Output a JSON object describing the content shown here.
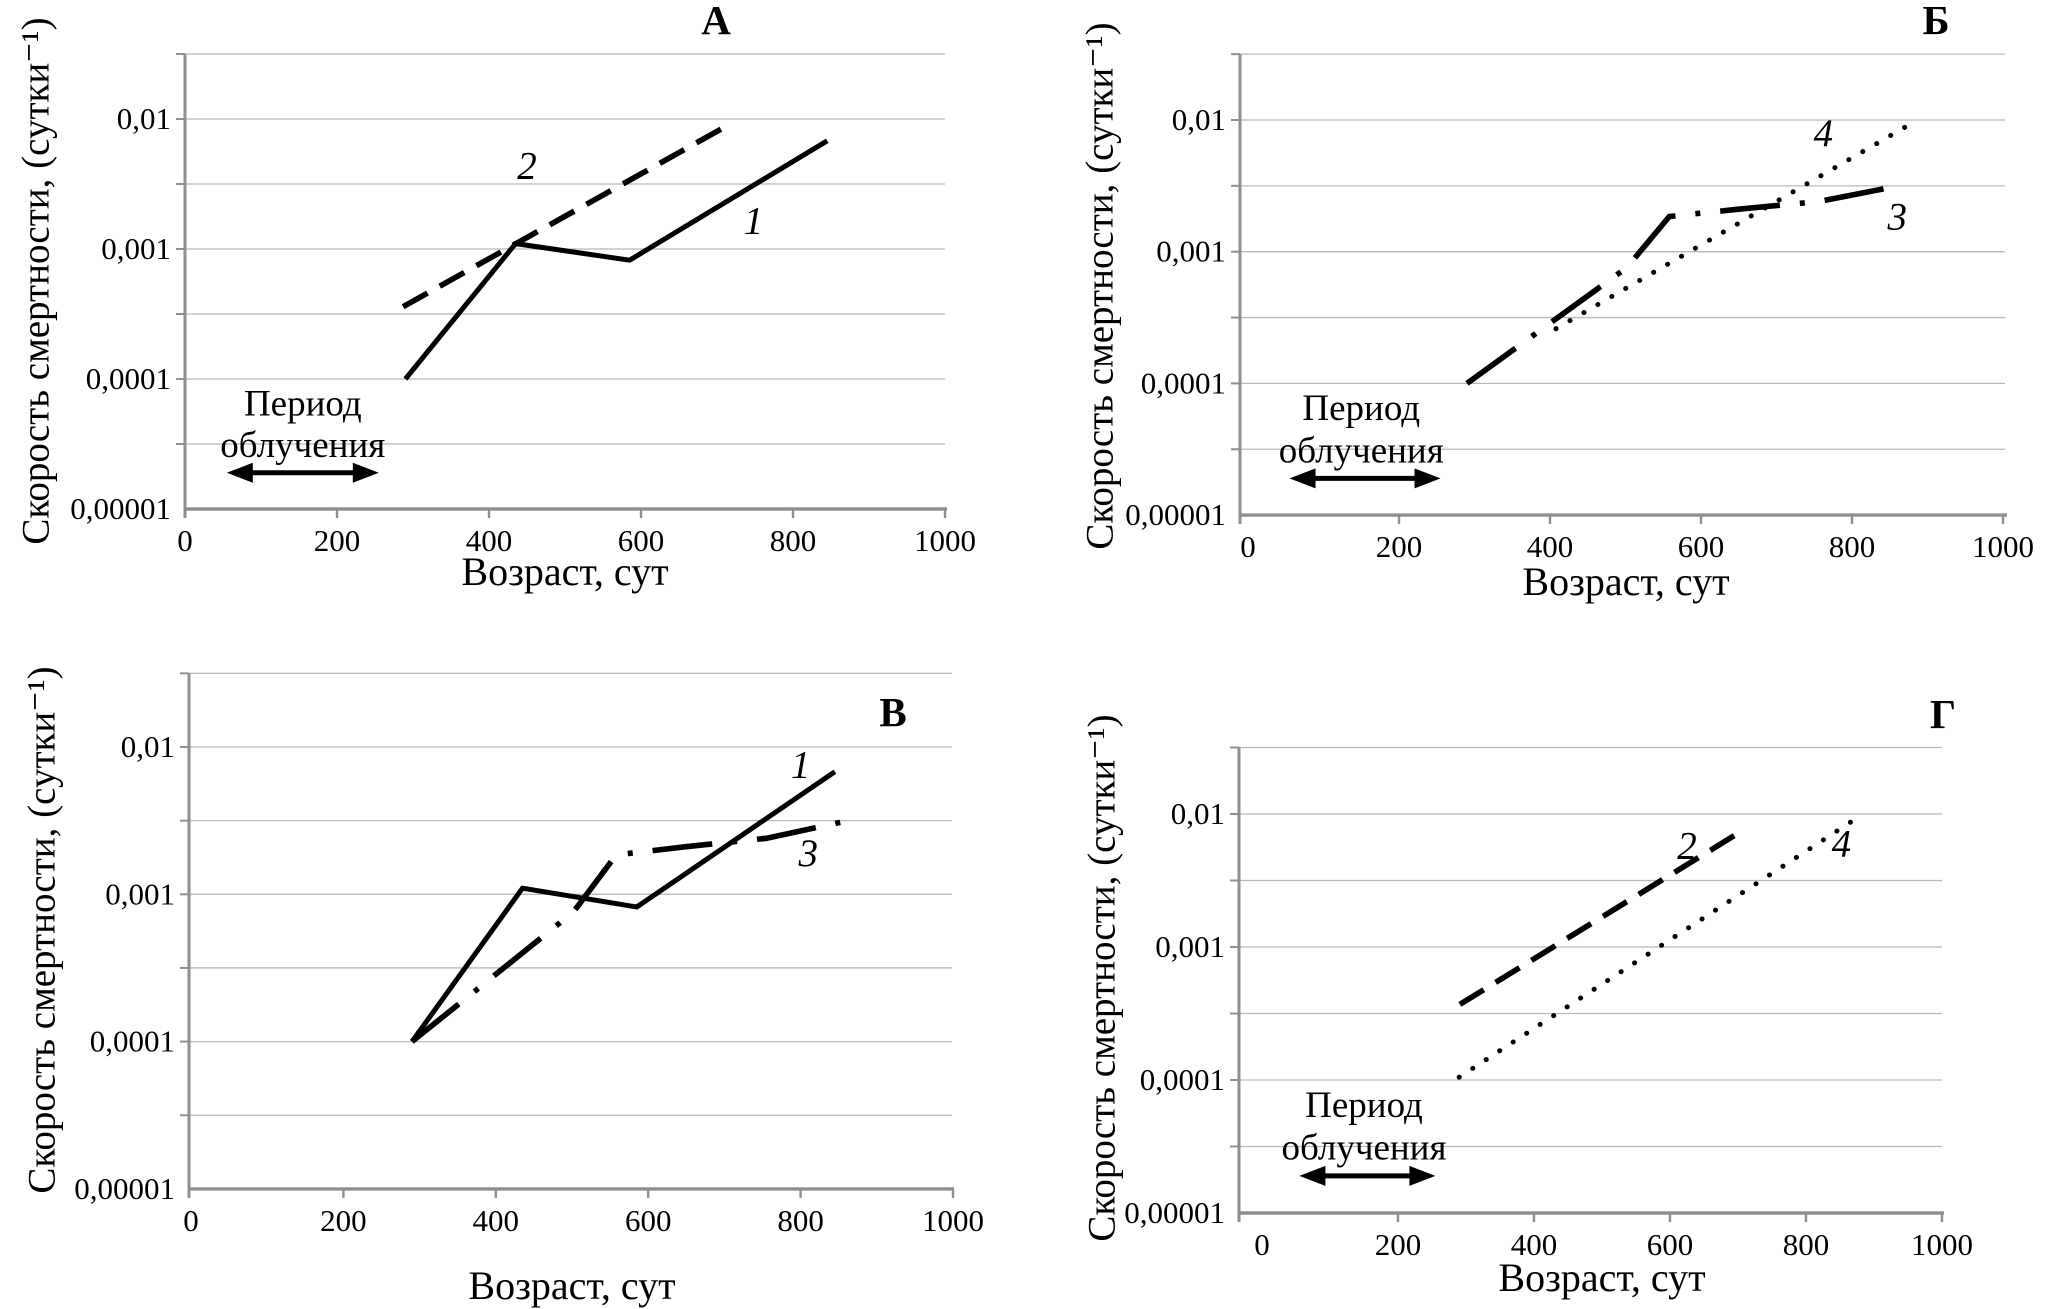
{
  "figure": {
    "background": "#ffffff",
    "text_color": "#000000",
    "grid_color": "#b8b8b8",
    "axis_color": "#8f8f8f",
    "curve_color": "#000000"
  },
  "labels": {
    "y_axis": "Скорость смертности, (сутки⁻¹)",
    "x_axis": "Возраст, сут",
    "annotation_line1": "Период",
    "annotation_line2": "облучения"
  },
  "axes": {
    "x_range": [
      0,
      1000
    ],
    "x_ticks": [
      0,
      200,
      400,
      600,
      800,
      1000
    ],
    "y_scale": "log",
    "y_log_range_exp": [
      -5,
      -1.5
    ],
    "y_ticks": [
      {
        "label": "0,01",
        "exp": -2
      },
      {
        "label": "0,001",
        "exp": -3
      },
      {
        "label": "0,0001",
        "exp": -4
      },
      {
        "label": "0,00001",
        "exp": -5
      }
    ],
    "gridlines": "horizontal, every half decade"
  },
  "chart_data": [
    {
      "panel_letter": "А",
      "type": "line",
      "xlabel": "Возраст, сут",
      "ylabel": "Скорость смертности, (сутки⁻¹)",
      "series": [
        {
          "name": "1",
          "style": "solid",
          "points": [
            [
              290,
              0.0001
            ],
            [
              435,
              0.0011
            ],
            [
              585,
              0.00082
            ],
            [
              845,
              0.0068
            ]
          ],
          "label_at": [
            748,
            0.00165
          ]
        },
        {
          "name": "2",
          "style": "dashed",
          "points": [
            [
              287,
              0.00036
            ],
            [
              706,
              0.0084
            ]
          ],
          "label_at": [
            450,
            0.0044
          ]
        }
      ],
      "annotation": {
        "present": true,
        "arrow_x": [
          55,
          255
        ],
        "arrow_y": 1.9e-05,
        "text_x": 155,
        "text_y": [
          6.5e-05,
          3.1e-05
        ]
      }
    },
    {
      "panel_letter": "Б",
      "type": "line",
      "xlabel": "Возраст, сут",
      "ylabel": "Скорость смертности, (сутки⁻¹)",
      "series": [
        {
          "name": "3",
          "style": "dashdot",
          "points": [
            [
              290,
              0.0001
            ],
            [
              502,
              0.00076
            ],
            [
              558,
              0.00185
            ],
            [
              648,
              0.0021
            ],
            [
              755,
              0.0024
            ],
            [
              855,
              0.0031
            ]
          ],
          "label_at": [
            860,
            0.00185
          ]
        },
        {
          "name": "4",
          "style": "dotted",
          "points": [
            [
              408,
              0.00026
            ],
            [
              870,
              0.0088
            ]
          ],
          "label_at": [
            762,
            0.008
          ]
        }
      ],
      "annotation": {
        "present": true,
        "arrow_x": [
          55,
          255
        ],
        "arrow_y": 1.9e-05,
        "text_x": 150,
        "text_y": [
          6.5e-05,
          3.1e-05
        ]
      }
    },
    {
      "panel_letter": "В",
      "type": "line",
      "xlabel": "Возраст, сут",
      "ylabel": "Скорость смертности, (сутки⁻¹)",
      "series": [
        {
          "name": "1",
          "style": "solid",
          "points": [
            [
              290,
              0.0001
            ],
            [
              435,
              0.0011
            ],
            [
              585,
              0.00082
            ],
            [
              845,
              0.0068
            ]
          ],
          "label_at": [
            800,
            0.0076
          ]
        },
        {
          "name": "3",
          "style": "dashdot",
          "points": [
            [
              290,
              0.0001
            ],
            [
              502,
              0.00076
            ],
            [
              558,
              0.00185
            ],
            [
              648,
              0.0021
            ],
            [
              755,
              0.0024
            ],
            [
              855,
              0.0031
            ]
          ],
          "label_at": [
            810,
            0.0019
          ]
        }
      ],
      "annotation": {
        "present": false
      }
    },
    {
      "panel_letter": "Г",
      "type": "line",
      "xlabel": "Возраст, сут",
      "ylabel": "Скорость смертности, (сутки⁻¹)",
      "series": [
        {
          "name": "2",
          "style": "dashed",
          "points": [
            [
              291,
              0.00037
            ],
            [
              710,
              0.0077
            ]
          ],
          "label_at": [
            625,
            0.0058
          ]
        },
        {
          "name": "4",
          "style": "dotted",
          "points": [
            [
              290,
              0.000105
            ],
            [
              884,
              0.01
            ]
          ],
          "label_at": [
            852,
            0.006
          ]
        }
      ],
      "annotation": {
        "present": true,
        "arrow_x": [
          55,
          255
        ],
        "arrow_y": 1.9e-05,
        "text_x": 150,
        "text_y": [
          6.5e-05,
          3.1e-05
        ]
      }
    }
  ]
}
